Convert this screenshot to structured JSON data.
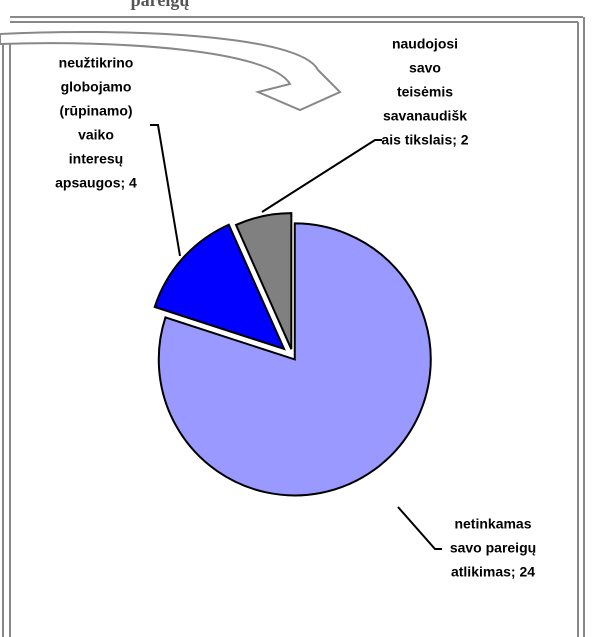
{
  "chart_data": {
    "type": "pie",
    "title": "pareigų",
    "labels": [
      [
        "netinkamas",
        "savo pareigų",
        "atlikimas; 24"
      ],
      [
        "neužtikrino",
        "globojamo",
        "(rūpinamo)",
        "vaiko",
        "interesų",
        "apsaugos; 4"
      ],
      [
        "naudojosi",
        "savo",
        "teisėmis",
        "savanaudišk",
        "ais tikslais; 2"
      ]
    ],
    "values": [
      24,
      4,
      2
    ],
    "colors": [
      "#9999ff",
      "#0000ff",
      "#808080"
    ]
  }
}
